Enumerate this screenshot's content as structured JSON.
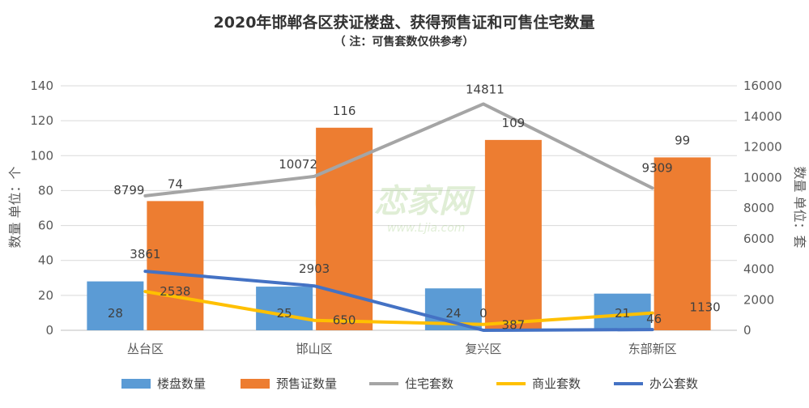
{
  "chart_data": {
    "type": "bar",
    "title": "2020年邯郸各区获证楼盘、获得预售证和可售住宅数量",
    "subtitle": "（ 注：可售套数仅供参考）",
    "categories": [
      "丛台区",
      "邯山区",
      "复兴区",
      "东部新区"
    ],
    "ylabel_left": "数量 单位：个",
    "ylabel_right": "数量 单位：套",
    "ylim_left": [
      0,
      140
    ],
    "ylim_right": [
      0,
      16000
    ],
    "yticks_left": [
      "0",
      "20",
      "40",
      "60",
      "80",
      "100",
      "120",
      "140"
    ],
    "yticks_right": [
      "0",
      "2000",
      "4000",
      "6000",
      "8000",
      "10000",
      "12000",
      "14000",
      "16000"
    ],
    "grid": true,
    "legend_position": "bottom",
    "series": [
      {
        "name": "楼盘数量",
        "type": "bar",
        "axis": "left",
        "color": "#5b9bd5",
        "values": [
          28,
          25,
          24,
          21
        ]
      },
      {
        "name": "预售证数量",
        "type": "bar",
        "axis": "left",
        "color": "#ed7d31",
        "values": [
          74,
          116,
          109,
          99
        ]
      },
      {
        "name": "住宅套数",
        "type": "line",
        "axis": "right",
        "color": "#a5a5a5",
        "values": [
          8799,
          10072,
          14811,
          9309
        ]
      },
      {
        "name": "商业套数",
        "type": "line",
        "axis": "right",
        "color": "#ffc000",
        "values": [
          2538,
          650,
          387,
          1130
        ]
      },
      {
        "name": "办公套数",
        "type": "line",
        "axis": "right",
        "color": "#4472c4",
        "values": [
          3861,
          2903,
          0,
          46
        ]
      }
    ],
    "watermark": {
      "brand": "恋家网",
      "url": "www.Ljia.com"
    }
  }
}
